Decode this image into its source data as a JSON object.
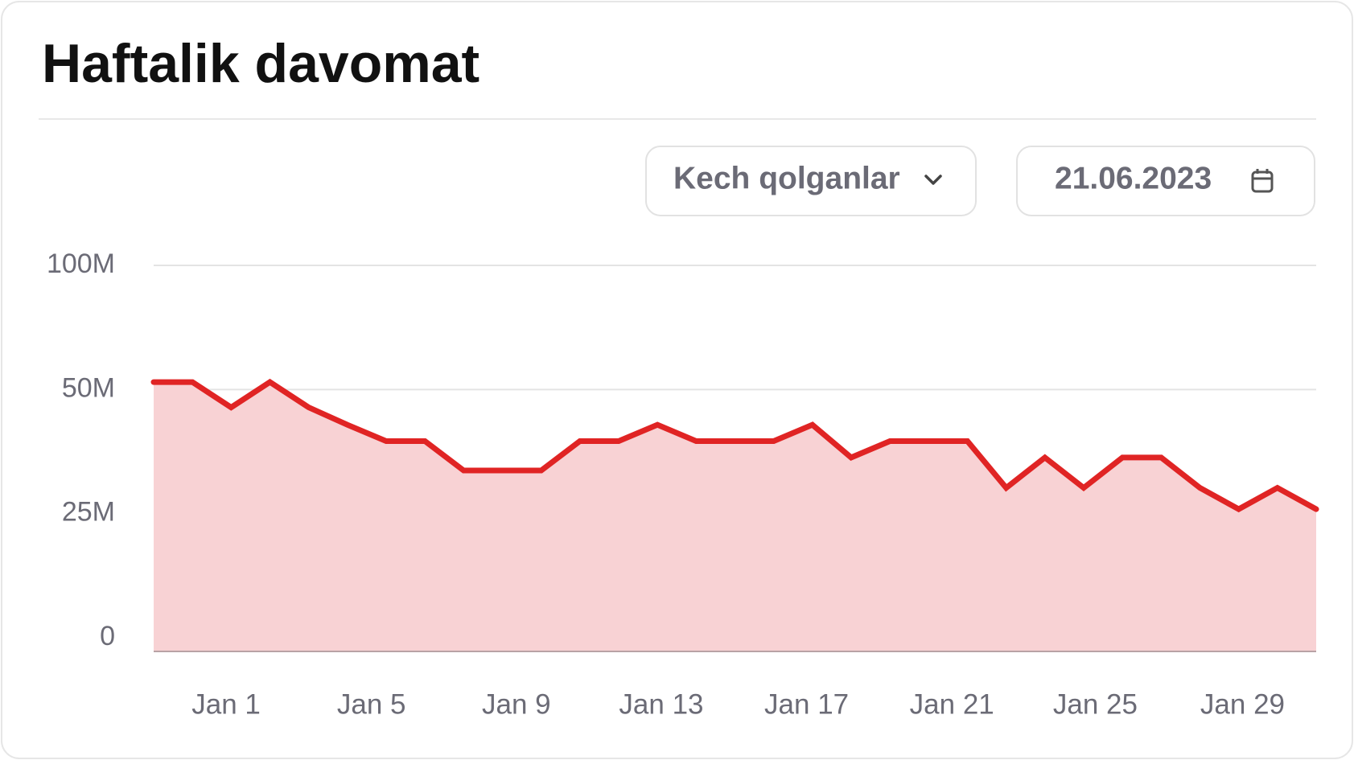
{
  "header": {
    "title": "Haftalik davomat"
  },
  "filters": {
    "category": "Kech qolganlar",
    "date": "21.06.2023"
  },
  "chart_data": {
    "type": "area",
    "color": "#e02424",
    "fill": "#f8d2d4",
    "grid": true,
    "x": [
      0,
      1,
      2,
      3,
      4,
      5,
      6,
      7,
      8,
      9,
      10,
      11,
      12,
      13,
      14,
      15,
      16,
      17,
      18,
      19,
      20,
      21,
      22,
      23,
      24,
      25,
      26,
      27,
      28,
      29,
      30
    ],
    "values": [
      53000000,
      53000000,
      46400000,
      53000000,
      46400000,
      42900000,
      39600000,
      39600000,
      33700000,
      33700000,
      33700000,
      39600000,
      39600000,
      42900000,
      39600000,
      39600000,
      39600000,
      42900000,
      36300000,
      39600000,
      39600000,
      39600000,
      30200000,
      36300000,
      30200000,
      36300000,
      36300000,
      30200000,
      25900000,
      30200000,
      25900000
    ],
    "xlim": [
      0,
      30
    ],
    "xticks": [
      {
        "value": 1.87,
        "label": "Jan 1"
      },
      {
        "value": 5.62,
        "label": "Jan 5"
      },
      {
        "value": 9.36,
        "label": "Jan 9"
      },
      {
        "value": 13.1,
        "label": "Jan 13"
      },
      {
        "value": 16.85,
        "label": "Jan 17"
      },
      {
        "value": 20.6,
        "label": "Jan 21"
      },
      {
        "value": 24.3,
        "label": "Jan 25"
      },
      {
        "value": 28.1,
        "label": "Jan 29"
      }
    ],
    "ylim": [
      0,
      100000000
    ],
    "yticks": [
      {
        "value": 0,
        "label": "0"
      },
      {
        "value": 25000000,
        "label": "25M"
      },
      {
        "value": 50000000,
        "label": "50M"
      },
      {
        "value": 100000000,
        "label": "100M"
      }
    ]
  }
}
